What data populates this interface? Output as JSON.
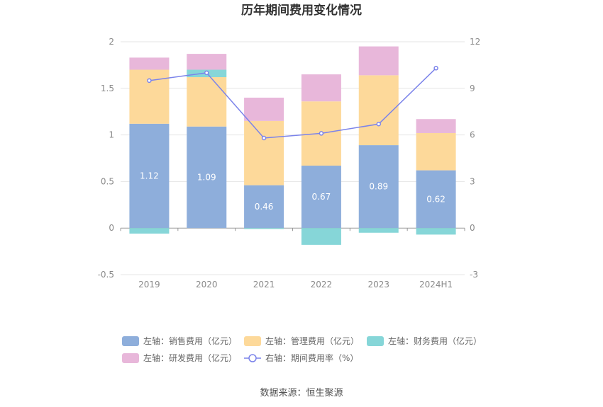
{
  "chart_data": {
    "type": "bar",
    "title": "历年期间费用变化情况",
    "categories": [
      "2019",
      "2020",
      "2021",
      "2022",
      "2023",
      "2024H1"
    ],
    "stacked": true,
    "left_axis": {
      "min": -0.5,
      "max": 2,
      "ticks": [
        "-0.5",
        "0",
        "0.5",
        "1",
        "1.5",
        "2"
      ]
    },
    "right_axis": {
      "min": -3,
      "max": 12,
      "ticks": [
        "-3",
        "0",
        "3",
        "6",
        "9",
        "12"
      ]
    },
    "series": [
      {
        "name": "左轴：销售费用（亿元）",
        "axis": "left",
        "type": "bar",
        "color": "#8eaedb",
        "values": [
          1.12,
          1.09,
          0.46,
          0.67,
          0.89,
          0.62
        ],
        "labels": [
          "1.12",
          "1.09",
          "0.46",
          "0.67",
          "0.89",
          "0.62"
        ]
      },
      {
        "name": "左轴：管理费用（亿元）",
        "axis": "left",
        "type": "bar",
        "color": "#fdd99a",
        "values": [
          0.58,
          0.53,
          0.69,
          0.69,
          0.75,
          0.4
        ]
      },
      {
        "name": "左轴：财务费用（亿元）",
        "axis": "left",
        "type": "bar",
        "color": "#86d6d8",
        "values": [
          -0.06,
          0.08,
          -0.01,
          -0.18,
          -0.05,
          -0.07
        ]
      },
      {
        "name": "左轴：研发费用（亿元）",
        "axis": "left",
        "type": "bar",
        "color": "#e8b7da",
        "values": [
          0.13,
          0.17,
          0.25,
          0.29,
          0.31,
          0.15
        ]
      },
      {
        "name": "右轴：期间费用率（%）",
        "axis": "right",
        "type": "line",
        "color": "#7b83ea",
        "values": [
          9.5,
          10.0,
          5.8,
          6.1,
          6.7,
          10.3
        ]
      }
    ],
    "grid": true,
    "legend_position": "bottom"
  },
  "source_text": "数据来源：恒生聚源"
}
